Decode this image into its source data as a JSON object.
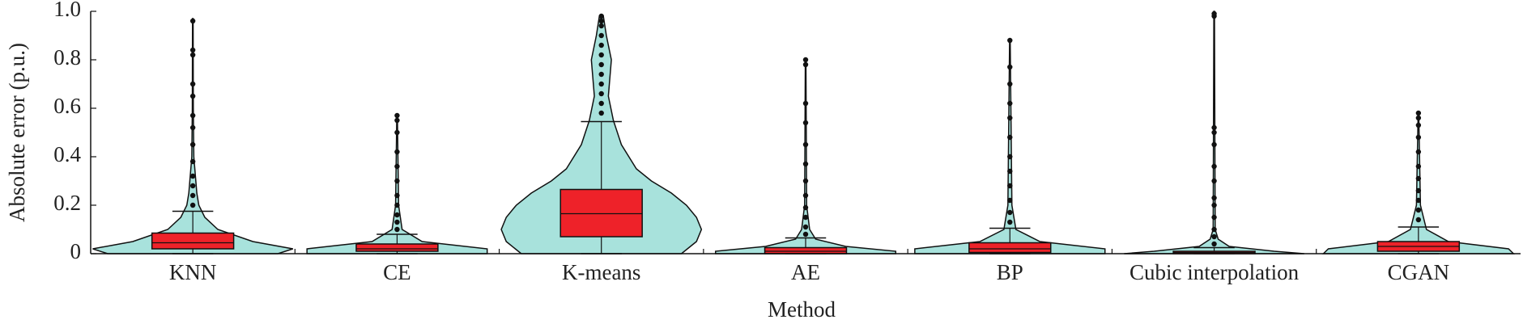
{
  "chart_data": {
    "type": "violin",
    "xlabel": "Method",
    "ylabel": "Absolute error (p.u.)",
    "ylim": [
      0,
      1
    ],
    "yticks": [
      0,
      0.2,
      0.4,
      0.6,
      0.8,
      {
        "value": 1,
        "label": "1.0"
      }
    ],
    "violin_color": "#a8e2dc",
    "box_color": "#ee2229",
    "series": [
      {
        "name": "KNN",
        "q1": 0.02,
        "median": 0.045,
        "q3": 0.085,
        "whisker_low": 0,
        "whisker_high": 0.175,
        "outliers": [
          0.2,
          0.24,
          0.28,
          0.32,
          0.38,
          0.45,
          0.52,
          0.57,
          0.65,
          0.7,
          0.82,
          0.84,
          0.96
        ],
        "density_y": [
          0,
          0.02,
          0.05,
          0.1,
          0.15,
          0.2,
          0.25,
          0.3,
          0.4,
          0.6,
          0.97
        ],
        "density": [
          0.85,
          1.0,
          0.6,
          0.25,
          0.12,
          0.06,
          0.04,
          0.03,
          0.01,
          0.005,
          0.003
        ]
      },
      {
        "name": "CE",
        "q1": 0.01,
        "median": 0.02,
        "q3": 0.04,
        "whisker_low": 0,
        "whisker_high": 0.08,
        "outliers": [
          0.1,
          0.13,
          0.16,
          0.2,
          0.24,
          0.3,
          0.36,
          0.42,
          0.5,
          0.55,
          0.57
        ],
        "density_y": [
          0,
          0.02,
          0.05,
          0.1,
          0.2,
          0.57
        ],
        "density": [
          0.9,
          0.9,
          0.25,
          0.05,
          0.015,
          0.003
        ]
      },
      {
        "name": "K-means",
        "q1": 0.07,
        "median": 0.165,
        "q3": 0.265,
        "whisker_low": 0,
        "whisker_high": 0.545,
        "outliers": [
          0.58,
          0.62,
          0.66,
          0.7,
          0.74,
          0.78,
          0.82,
          0.86,
          0.9,
          0.94,
          0.96,
          0.98
        ],
        "density_y": [
          0,
          0.05,
          0.1,
          0.15,
          0.2,
          0.25,
          0.3,
          0.35,
          0.45,
          0.55,
          0.65,
          0.75,
          0.8,
          0.9,
          0.98
        ],
        "density": [
          0.8,
          0.95,
          1.0,
          0.95,
          0.85,
          0.7,
          0.5,
          0.35,
          0.2,
          0.12,
          0.07,
          0.09,
          0.1,
          0.05,
          0.02
        ]
      },
      {
        "name": "AE",
        "q1": 0,
        "median": 0.01,
        "q3": 0.025,
        "whisker_low": 0,
        "whisker_high": 0.065,
        "outliers": [
          0.08,
          0.11,
          0.15,
          0.19,
          0.24,
          0.3,
          0.37,
          0.45,
          0.54,
          0.62,
          0.78,
          0.8
        ],
        "density_y": [
          0,
          0.01,
          0.03,
          0.06,
          0.1,
          0.2,
          0.8
        ],
        "density": [
          0.9,
          0.9,
          0.4,
          0.1,
          0.04,
          0.01,
          0.003
        ]
      },
      {
        "name": "BP",
        "q1": 0.005,
        "median": 0.02,
        "q3": 0.045,
        "whisker_low": 0,
        "whisker_high": 0.105,
        "outliers": [
          0.13,
          0.17,
          0.22,
          0.28,
          0.34,
          0.4,
          0.48,
          0.56,
          0.62,
          0.7,
          0.77,
          0.88
        ],
        "density_y": [
          0,
          0.02,
          0.05,
          0.1,
          0.2,
          0.88
        ],
        "density": [
          0.95,
          0.95,
          0.3,
          0.06,
          0.02,
          0.003
        ]
      },
      {
        "name": "Cubic interpolation",
        "q1": 0,
        "median": 0.005,
        "q3": 0.01,
        "whisker_low": 0,
        "whisker_high": 0.025,
        "outliers": [
          0.04,
          0.07,
          0.1,
          0.15,
          0.2,
          0.23,
          0.3,
          0.36,
          0.45,
          0.5,
          0.52,
          0.98,
          0.99
        ],
        "density_y": [
          0,
          0.01,
          0.03,
          0.06,
          0.1,
          1
        ],
        "density": [
          0.9,
          0.6,
          0.15,
          0.04,
          0.01,
          0.003
        ]
      },
      {
        "name": "CGAN",
        "q1": 0.01,
        "median": 0.03,
        "q3": 0.05,
        "whisker_low": 0,
        "whisker_high": 0.11,
        "outliers": [
          0.14,
          0.18,
          0.22,
          0.26,
          0.31,
          0.36,
          0.42,
          0.48,
          0.53,
          0.56,
          0.58
        ],
        "density_y": [
          0,
          0.02,
          0.05,
          0.1,
          0.2,
          0.58
        ],
        "density": [
          0.95,
          0.9,
          0.3,
          0.08,
          0.02,
          0.003
        ]
      }
    ]
  }
}
